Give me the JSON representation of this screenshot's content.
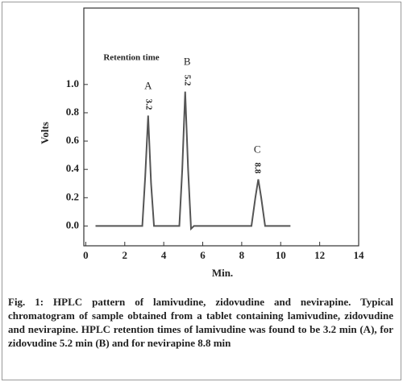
{
  "chart_data": {
    "type": "line",
    "title": "Retention time",
    "xlabel": "Min.",
    "ylabel": "Volts",
    "x": [
      0.5,
      2.9,
      3.05,
      3.2,
      3.35,
      3.5,
      4.8,
      4.95,
      5.1,
      5.25,
      5.4,
      5.55,
      8.5,
      8.7,
      8.85,
      9.0,
      9.2,
      10.5
    ],
    "series": [
      {
        "color": "#555555",
        "values": [
          0,
          0,
          0.35,
          0.78,
          0.3,
          0,
          0,
          0.4,
          0.95,
          0.4,
          -0.02,
          0,
          0,
          0.2,
          0.33,
          0.2,
          0,
          0
        ]
      }
    ],
    "peaks": [
      {
        "name": "A",
        "retention": 3.2
      },
      {
        "name": "B",
        "retention": 5.2
      },
      {
        "name": "C",
        "retention": 8.8
      }
    ],
    "xlim": [
      -0.1,
      14
    ],
    "ylim": [
      -0.14,
      1.54
    ],
    "xticks": [
      0,
      2,
      4,
      6,
      8,
      10,
      12,
      14
    ],
    "yticks": [
      {
        "value": 0,
        "label": "0.0"
      },
      0.2,
      0.4,
      0.6,
      0.8,
      {
        "value": 1,
        "label": "1.0"
      }
    ],
    "grid": false
  },
  "caption": "Fig. 1: HPLC pattern of lamivudine, zidovudine and nevirapine. Typical chromatogram of sample obtained from a tablet containing lamivudine, zidovudine and nevirapine. HPLC retention times of lamivudine was found to be 3.2 min (A), for zidovudine 5.2 min (B) and for nevirapine 8.8 min"
}
